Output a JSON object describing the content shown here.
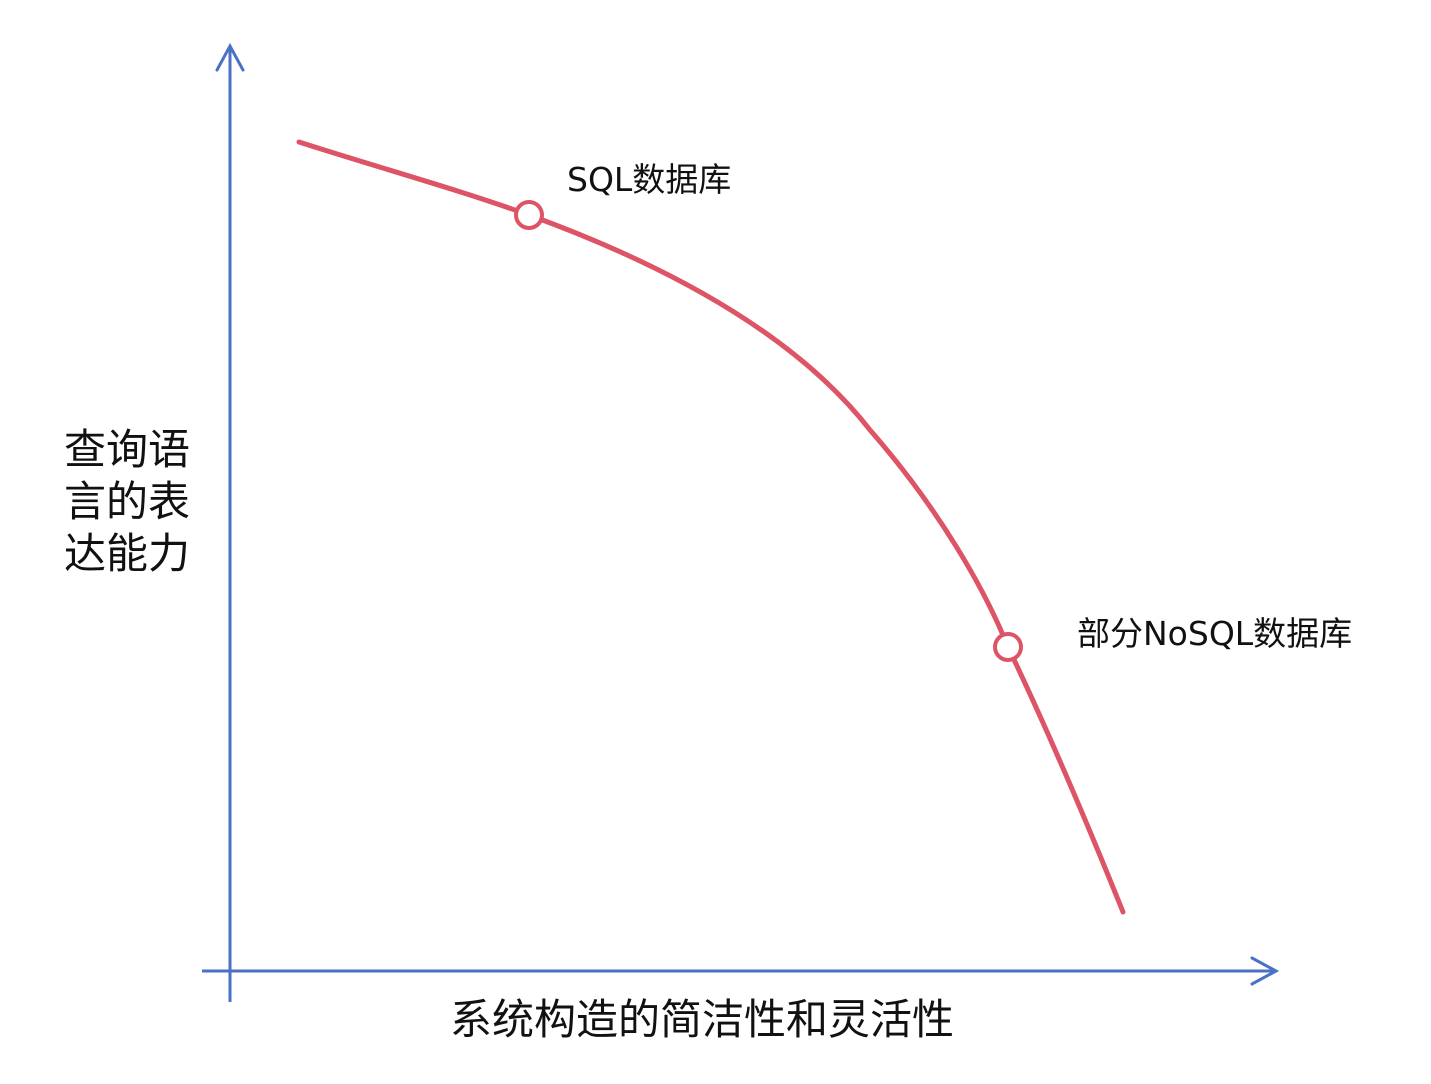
{
  "diagram": {
    "y_axis_title": "查询语言的表达能力",
    "x_axis_title": "系统构造的简洁性和灵活性",
    "points": [
      {
        "label": "SQL数据库"
      },
      {
        "label": "部分NoSQL数据库"
      }
    ],
    "colors": {
      "axis": "#4a72c4",
      "curve": "#dc5466",
      "text": "#111111",
      "background": "#ffffff"
    }
  }
}
